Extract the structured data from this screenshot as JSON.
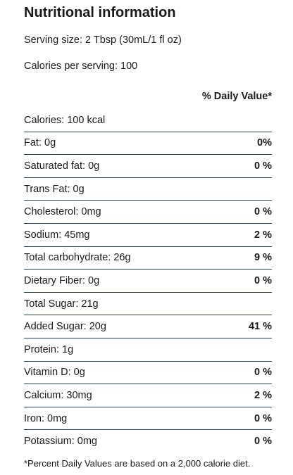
{
  "title": "Nutritional information",
  "serving_size": "Serving size: 2 Tbsp (30mL/1 fl oz)",
  "calories_per_serving": "Calories per serving: 100",
  "table": {
    "header": "% Daily Value*",
    "rows": [
      {
        "label": "Calories: 100 kcal"
      },
      {
        "label": "Fat: 0g",
        "dv": "0%"
      },
      {
        "label": "Saturated fat: 0g",
        "dv": "0 %"
      },
      {
        "label": "Trans Fat: 0g"
      },
      {
        "label": "Cholesterol: 0mg",
        "dv": "0 %"
      },
      {
        "label": "Sodium: 45mg",
        "dv": "2 %"
      },
      {
        "label": "Total carbohydrate: 26g",
        "dv": "9 %"
      },
      {
        "label": "Dietary Fiber: 0g",
        "dv": "0 %"
      },
      {
        "label": "Total Sugar: 21g"
      },
      {
        "label": "Added Sugar: 20g",
        "dv": "41 %"
      },
      {
        "label": "Protein: 1g"
      },
      {
        "label": "Vitamin D: 0g",
        "dv": "0 %"
      },
      {
        "label": "Calcium: 30mg",
        "dv": "2 %"
      },
      {
        "label": "Iron: 0mg",
        "dv": "0 %"
      },
      {
        "label": "Potassium: 0mg",
        "dv": "0 %"
      }
    ]
  },
  "footnote": "*Percent Daily Values are based on a 2,000 calorie diet."
}
